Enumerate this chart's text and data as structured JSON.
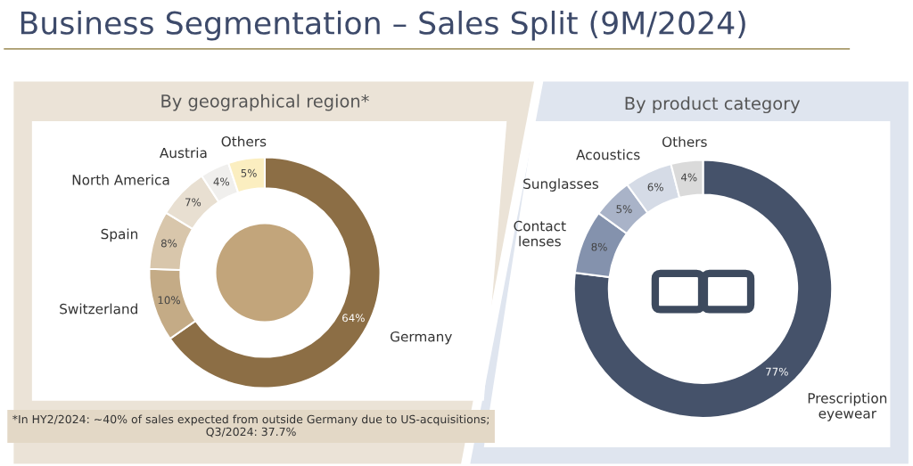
{
  "chart_data": [
    {
      "type": "donut",
      "title": "By geographical region*",
      "categories": [
        "Germany",
        "Switzerland",
        "Spain",
        "North America",
        "Austria",
        "Others"
      ],
      "values": [
        64,
        10,
        8,
        7,
        4,
        5
      ],
      "value_labels": [
        "64%",
        "10%",
        "8%",
        "7%",
        "4%",
        "5%"
      ],
      "colors": [
        "#8c6e45",
        "#c4ab86",
        "#d8c6ab",
        "#e8dfd1",
        "#f0efed",
        "#fbeec0"
      ],
      "annotations": [
        "Business Segmentation – Sales Split (9M/2024)",
        "*In HY2/2024: ~40% of sales expected from outside Germany due to US-acquisitions; Q3/2024: 37.7%"
      ]
    },
    {
      "type": "donut",
      "title": "By product category",
      "categories": [
        "Prescription\neyewear",
        "Contact\nlenses",
        "Sunglasses",
        "Acoustics",
        "Others"
      ],
      "values": [
        77,
        8,
        5,
        6,
        4
      ],
      "value_labels": [
        "77%",
        "8%",
        "5%",
        "6%",
        "4%"
      ],
      "colors": [
        "#45526a",
        "#8492ad",
        "#a9b3c8",
        "#d5dbe6",
        "#dadada"
      ]
    }
  ]
}
